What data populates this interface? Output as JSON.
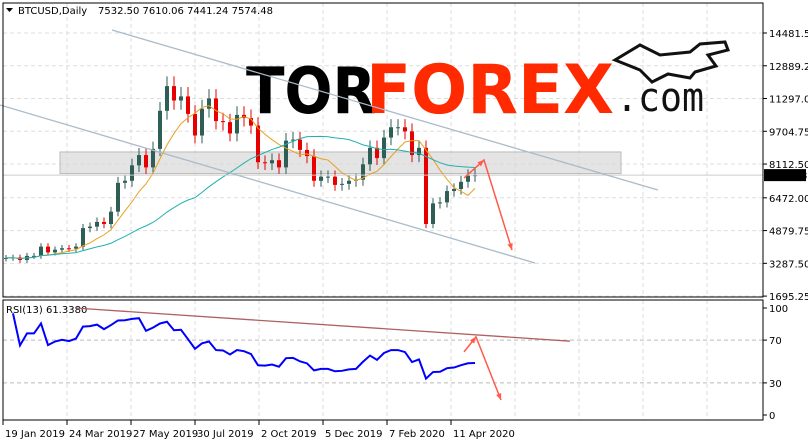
{
  "header": {
    "symbol": "BTCUSD,Daily",
    "ohlc": "7532.50 7610.06 7441.24 7574.48"
  },
  "logo": {
    "text_dark": "TOR",
    "text_accent": "FOREX",
    "suffix": ".com",
    "accent_color": "#ff2a00"
  },
  "colors": {
    "bull": "#2e5e55",
    "bear": "#e60000",
    "ma_fast": "#e8a020",
    "ma_slow": "#20b0b0",
    "rsi": "#0000ff",
    "channel": "#a9bccb",
    "arrow": "#ff5a4a",
    "rsi_trend": "#b06060",
    "zone": "#d8d8d8",
    "price_tag_bg": "#000000"
  },
  "chart_data": [
    {
      "type": "candlestick",
      "title": "BTCUSD,Daily",
      "ylim": [
        1650,
        15940
      ],
      "xlim": [
        "2019-01-16",
        "2020-09-28"
      ],
      "y_ticks": [
        "14481.50",
        "12889.25",
        "11297.00",
        "9704.75",
        "8112.50",
        "6472.00",
        "4879.75",
        "3287.50",
        "1695.25"
      ],
      "x_ticks": [
        {
          "label": "19 Jan 2019",
          "date": "2019-01-19"
        },
        {
          "label": "24 Mar 2019",
          "date": "2019-03-24"
        },
        {
          "label": "27 May 2019",
          "date": "2019-05-27"
        },
        {
          "label": "30 Jul 2019",
          "date": "2019-07-30"
        },
        {
          "label": "2 Oct 2019",
          "date": "2019-10-02"
        },
        {
          "label": "5 Dec 2019",
          "date": "2019-12-05"
        },
        {
          "label": "7 Feb 2020",
          "date": "2020-02-07"
        },
        {
          "label": "11 Apr 2020",
          "date": "2020-04-11"
        }
      ],
      "grid": true,
      "last_price": "7574.48",
      "start_date": "2019-01-19",
      "interval_days": 7,
      "closes": [
        3550,
        3570,
        3450,
        3650,
        3650,
        4100,
        3820,
        3950,
        4020,
        4000,
        4100,
        5000,
        5070,
        5300,
        5200,
        5800,
        7200,
        7300,
        8050,
        8550,
        7950,
        8850,
        10700,
        11900,
        11200,
        11400,
        10550,
        9500,
        10800,
        11300,
        10200,
        10150,
        9600,
        10500,
        10350,
        9980,
        8200,
        8150,
        8300,
        7950,
        9250,
        9300,
        8800,
        8500,
        7300,
        7500,
        7500,
        7100,
        7150,
        7300,
        7350,
        8100,
        8900,
        8400,
        9400,
        9900,
        9900,
        9700,
        8550,
        8900,
        5200,
        6200,
        6250,
        6800,
        6900,
        7250,
        7550,
        7574.48
      ],
      "moving_averages": [
        "fast",
        "slow"
      ],
      "zone": {
        "from": "2019-04-14",
        "to": "2020-09-28",
        "low": 7650,
        "high": 8700
      },
      "channel_upper": [
        {
          "date": "2019-05-08",
          "price": 14627
        },
        {
          "date": "2020-11-04",
          "price": 6851
        }
      ],
      "channel_lower": [
        {
          "date": "2019-01-16",
          "price": 10982
        },
        {
          "date": "2020-07-04",
          "price": 3303
        }
      ],
      "forecast_arrow": [
        {
          "date": "2020-04-24",
          "price": 7434
        },
        {
          "date": "2020-05-14",
          "price": 8309
        },
        {
          "date": "2020-06-11",
          "price": 3935
        }
      ]
    },
    {
      "type": "line",
      "title": "RSI(13) 61.3380",
      "ylim": [
        0,
        100
      ],
      "y_ticks": [
        "100",
        "70",
        "30",
        "0"
      ],
      "levels": [
        70,
        30
      ],
      "period": 13,
      "trendline": [
        {
          "date": "2019-04-01",
          "value": 100
        },
        {
          "date": "2020-08-08",
          "value": 69
        }
      ],
      "forecast_arrow": [
        {
          "date": "2020-04-24",
          "value": 59
        },
        {
          "date": "2020-05-06",
          "value": 73
        },
        {
          "date": "2020-05-31",
          "value": 14
        }
      ]
    }
  ]
}
